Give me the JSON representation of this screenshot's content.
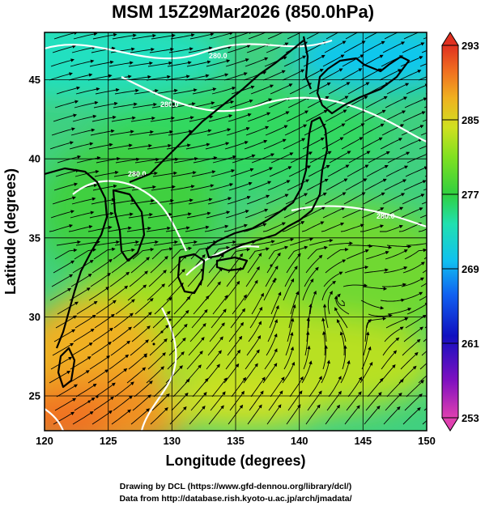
{
  "title": "MSM 15Z29Mar2026 (850.0hPa)",
  "x_axis": {
    "label": "Longitude (degrees)",
    "range": [
      120,
      150
    ],
    "ticks": [
      "120",
      "125",
      "130",
      "135",
      "140",
      "145",
      "150"
    ]
  },
  "y_axis": {
    "label": "Latitude  (degrees)",
    "range": [
      22.4,
      47.6
    ],
    "ticks": [
      "25",
      "30",
      "35",
      "40",
      "45"
    ]
  },
  "colorbar": {
    "range": [
      253,
      293
    ],
    "ticks": [
      "293",
      "285",
      "277",
      "269",
      "261",
      "253"
    ],
    "palette": [
      "#e040b0",
      "#8010c0",
      "#1010c0",
      "#1060f0",
      "#10c0f0",
      "#20e0b0",
      "#30d040",
      "#80e020",
      "#d0e020",
      "#f0b020",
      "#f07020",
      "#e03020"
    ]
  },
  "contour_labels": [
    "280.0",
    "280.0",
    "280.0",
    "280.0"
  ],
  "credits": {
    "line1": "Drawing by DCL (https://www.gfd-dennou.org/library/dcl/)",
    "line2": "Data from http://database.rish.kyoto-u.ac.jp/arch/jmadata/"
  }
}
